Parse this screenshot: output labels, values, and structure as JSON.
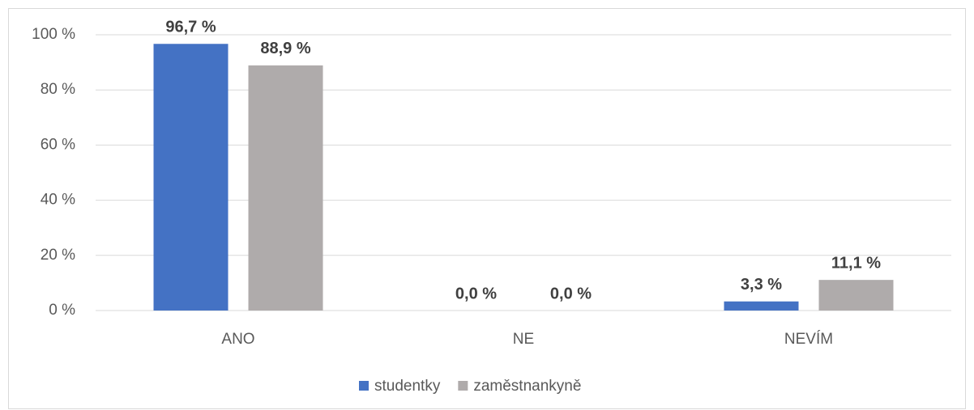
{
  "chart_data": {
    "type": "bar",
    "categories": [
      "ANO",
      "NE",
      "NEVÍM"
    ],
    "series": [
      {
        "name": "studentky",
        "color": "#4472c4",
        "values": [
          96.7,
          0,
          3.3
        ],
        "value_labels": [
          "96,7 %",
          "0,0 %",
          "3,3 %"
        ]
      },
      {
        "name": "zaměstnankyně",
        "color": "#afabab",
        "values": [
          88.9,
          0,
          11.1
        ],
        "value_labels": [
          "88,9 %",
          "0,0 %",
          "11,1 %"
        ]
      }
    ],
    "ylim": [
      0,
      100
    ],
    "yticks": [
      {
        "value": 0,
        "label": "0 %"
      },
      {
        "value": 20,
        "label": "20 %"
      },
      {
        "value": 40,
        "label": "40 %"
      },
      {
        "value": 60,
        "label": "60 %"
      },
      {
        "value": 80,
        "label": "80 %"
      },
      {
        "value": 100,
        "label": "100 %"
      }
    ],
    "grid": true,
    "legend": "bottom"
  }
}
